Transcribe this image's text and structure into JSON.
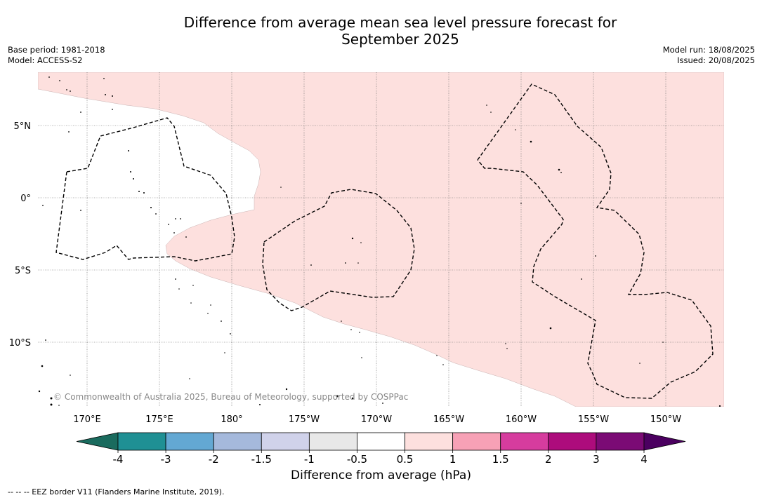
{
  "title_line1": "Difference from average mean sea level pressure forecast for",
  "title_line2": "September 2025",
  "base_period": "Base period: 1981-2018",
  "model": "Model: ACCESS-S2",
  "model_run": "Model run: 18/08/2025",
  "issued": "Issued: 20/08/2025",
  "copyright": "© Commonwealth of Australia 2025, Bureau of Meteorology, supported by COSPPac",
  "colorbar_label": "Difference from average (hPa)",
  "eez_note": "--  --  -- EEZ border V11 (Flanders Marine Institute, 2019).",
  "lon_ticks": [
    "170°E",
    "175°E",
    "180°",
    "175°W",
    "170°W",
    "165°W",
    "160°W",
    "155°W",
    "150°W"
  ],
  "lat_ticks": [
    "5°N",
    "0°",
    "5°S",
    "10°S"
  ],
  "colorbar": {
    "ticks": [
      "-4",
      "-3",
      "-2",
      "-1.5",
      "-1",
      "-0.5",
      "0.5",
      "1",
      "1.5",
      "2",
      "3",
      "4"
    ],
    "colors": [
      "#1a6b5e",
      "#1f9094",
      "#63a8d3",
      "#a5b9dc",
      "#d0d2ea",
      "#e8e8e8",
      "#ffffff",
      "#fde0de",
      "#f7a1b6",
      "#d63c9e",
      "#ad0c7c",
      "#7b0b75",
      "#4b0060"
    ]
  },
  "map_data": {
    "anomaly_region_color": "#fde0de",
    "anomaly_region_value": "0.5 to 1 hPa"
  }
}
